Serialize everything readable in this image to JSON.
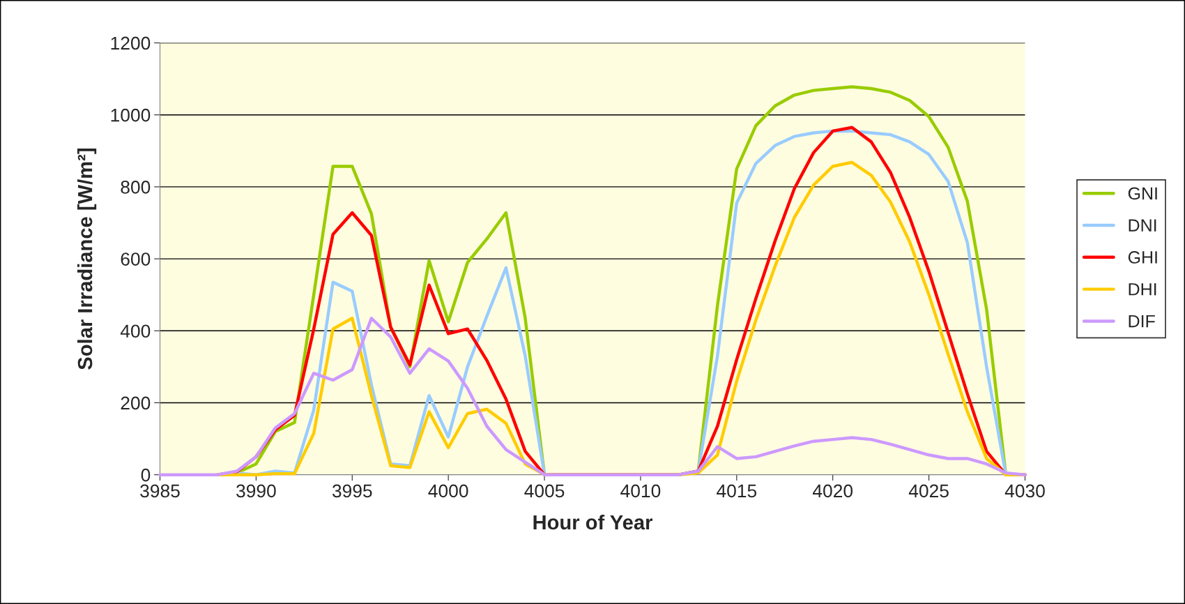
{
  "chart_data": {
    "type": "line",
    "xlabel": "Hour of Year",
    "ylabel": "Solar Irradiance [W/m²]",
    "x": [
      3985,
      3986,
      3987,
      3988,
      3989,
      3990,
      3991,
      3992,
      3993,
      3994,
      3995,
      3996,
      3997,
      3998,
      3999,
      4000,
      4001,
      4002,
      4003,
      4004,
      4005,
      4006,
      4007,
      4008,
      4009,
      4010,
      4011,
      4012,
      4013,
      4014,
      4015,
      4016,
      4017,
      4018,
      4019,
      4020,
      4021,
      4022,
      4023,
      4024,
      4025,
      4026,
      4027,
      4028,
      4029,
      4030
    ],
    "series": [
      {
        "name": "GNI",
        "color": "#99cc00",
        "values": [
          null,
          null,
          null,
          0,
          5,
          30,
          120,
          145,
          500,
          857,
          857,
          725,
          410,
          300,
          595,
          425,
          590,
          655,
          728,
          435,
          0,
          0,
          0,
          0,
          0,
          0,
          0,
          0,
          10,
          470,
          850,
          970,
          1025,
          1055,
          1068,
          1073,
          1078,
          1073,
          1063,
          1040,
          995,
          910,
          760,
          460,
          0,
          0
        ]
      },
      {
        "name": "DNI",
        "color": "#99ccff",
        "values": [
          null,
          null,
          null,
          0,
          5,
          0,
          10,
          5,
          180,
          535,
          510,
          250,
          30,
          25,
          220,
          105,
          300,
          440,
          575,
          330,
          0,
          0,
          0,
          0,
          0,
          0,
          0,
          0,
          10,
          330,
          755,
          865,
          915,
          940,
          950,
          955,
          955,
          950,
          945,
          925,
          890,
          815,
          645,
          300,
          0,
          0
        ]
      },
      {
        "name": "GHI",
        "color": "#ff0000",
        "values": [
          null,
          null,
          null,
          0,
          8,
          50,
          125,
          165,
          405,
          668,
          728,
          665,
          410,
          305,
          527,
          392,
          405,
          318,
          210,
          65,
          0,
          0,
          0,
          0,
          0,
          0,
          0,
          0,
          10,
          135,
          320,
          490,
          650,
          795,
          895,
          955,
          965,
          925,
          840,
          715,
          565,
          395,
          225,
          65,
          0,
          0
        ]
      },
      {
        "name": "DHI",
        "color": "#ffcc00",
        "values": [
          null,
          null,
          null,
          0,
          0,
          0,
          3,
          3,
          115,
          405,
          435,
          220,
          25,
          20,
          175,
          75,
          170,
          182,
          143,
          30,
          0,
          0,
          0,
          0,
          0,
          0,
          0,
          0,
          5,
          55,
          260,
          430,
          580,
          715,
          805,
          857,
          868,
          832,
          758,
          647,
          500,
          335,
          175,
          45,
          0,
          0
        ]
      },
      {
        "name": "DIF",
        "color": "#cc99ff",
        "values": [
          0,
          0,
          0,
          0,
          10,
          50,
          130,
          170,
          282,
          263,
          292,
          435,
          383,
          282,
          350,
          316,
          240,
          135,
          70,
          35,
          0,
          0,
          0,
          0,
          0,
          0,
          0,
          0,
          10,
          78,
          45,
          50,
          65,
          80,
          93,
          98,
          103,
          98,
          85,
          70,
          55,
          45,
          45,
          30,
          5,
          0
        ]
      }
    ],
    "xlim": [
      3985,
      4030
    ],
    "xticks": [
      3985,
      3990,
      3995,
      4000,
      4005,
      4010,
      4015,
      4020,
      4025,
      4030
    ],
    "ylim": [
      0,
      1200
    ],
    "yticks": [
      0,
      200,
      400,
      600,
      800,
      1000,
      1200
    ],
    "grid": "y",
    "legend": "right",
    "marker": "none",
    "line_style": "solid"
  }
}
